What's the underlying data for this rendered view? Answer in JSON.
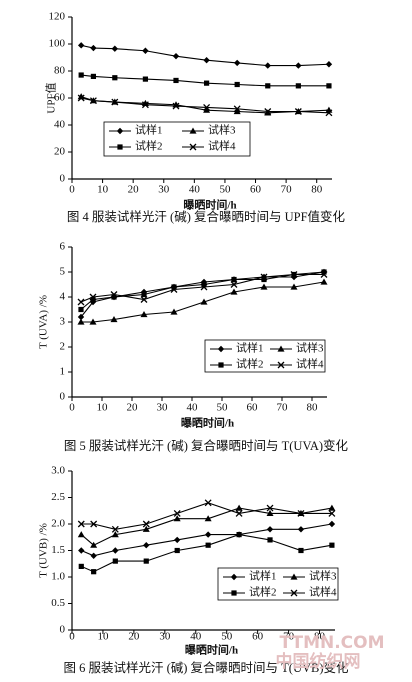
{
  "chart_data": [
    {
      "type": "line",
      "ylabel": "UPF值",
      "xlabel": "曝晒时间/h",
      "caption": "图 4  服装试样光汗 (碱) 复合曝晒时间与 UPF值变化",
      "x": [
        3,
        7,
        14,
        24,
        34,
        44,
        54,
        64,
        74,
        84
      ],
      "xlim": [
        0,
        85
      ],
      "xticks": [
        0,
        10,
        20,
        30,
        40,
        50,
        60,
        70,
        80
      ],
      "ylim": [
        0,
        120
      ],
      "yticks": [
        0,
        20,
        40,
        60,
        80,
        100,
        120
      ],
      "legend": "lower-left",
      "series": [
        {
          "name": "试样1",
          "color": "#000000",
          "marker": "diamond",
          "values": [
            99,
            97,
            96.5,
            95,
            91,
            88,
            86,
            84,
            84,
            85
          ]
        },
        {
          "name": "试样2",
          "color": "#000000",
          "marker": "square",
          "values": [
            77,
            76,
            75,
            74,
            73,
            71,
            70,
            69,
            69,
            69
          ]
        },
        {
          "name": "试样3",
          "color": "#000000",
          "marker": "triangle",
          "values": [
            61,
            58,
            57,
            56,
            55,
            51,
            50,
            49,
            50,
            51
          ]
        },
        {
          "name": "试样4",
          "color": "#000000",
          "marker": "cross",
          "values": [
            60,
            58,
            57,
            55,
            54,
            53,
            52,
            50,
            50,
            49
          ]
        }
      ]
    },
    {
      "type": "line",
      "ylabel": "T (UVA) /%",
      "xlabel": "曝晒时间/h",
      "caption": "图 5  服装试样光汗 (碱) 复合曝晒时间与 T(UVA)变化",
      "x": [
        3,
        7,
        14,
        24,
        34,
        44,
        54,
        64,
        74,
        84
      ],
      "xlim": [
        0,
        85
      ],
      "xticks": [
        0,
        10,
        20,
        30,
        40,
        50,
        60,
        70,
        80
      ],
      "ylim": [
        0,
        6
      ],
      "yticks": [
        0,
        1,
        2,
        3,
        4,
        5,
        6
      ],
      "legend": "lower-right",
      "series": [
        {
          "name": "试样1",
          "color": "#000000",
          "marker": "diamond",
          "values": [
            3.2,
            3.8,
            4.0,
            4.2,
            4.4,
            4.6,
            4.7,
            4.8,
            4.8,
            5.0
          ]
        },
        {
          "name": "试样2",
          "color": "#000000",
          "marker": "square",
          "values": [
            3.5,
            3.9,
            4.0,
            4.1,
            4.4,
            4.5,
            4.7,
            4.7,
            4.9,
            5.0
          ]
        },
        {
          "name": "试样3",
          "color": "#000000",
          "marker": "triangle",
          "values": [
            3.0,
            3.0,
            3.1,
            3.3,
            3.4,
            3.8,
            4.2,
            4.4,
            4.4,
            4.6
          ]
        },
        {
          "name": "试样4",
          "color": "#000000",
          "marker": "cross",
          "values": [
            3.8,
            4.0,
            4.1,
            3.9,
            4.3,
            4.4,
            4.5,
            4.8,
            4.9,
            4.9
          ]
        }
      ]
    },
    {
      "type": "line",
      "ylabel": "T (UVB) /%",
      "xlabel": "曝晒时间/h",
      "caption": "图 6  服装试样光汗 (碱) 复合曝晒时间与 T(UVB)变化",
      "x": [
        3,
        7,
        14,
        24,
        34,
        44,
        54,
        64,
        74,
        84
      ],
      "xlim": [
        0,
        85
      ],
      "xticks": [
        0,
        10,
        20,
        30,
        40,
        50,
        60,
        70,
        80
      ],
      "ylim": [
        0,
        3
      ],
      "yticks": [
        0,
        0.5,
        {
          "value": 1,
          "label": "1.0"
        },
        1.5,
        {
          "value": 2,
          "label": "2.0"
        },
        2.5,
        {
          "value": 3,
          "label": "3.0"
        }
      ],
      "legend": "lower-right",
      "series": [
        {
          "name": "试样1",
          "color": "#000000",
          "marker": "diamond",
          "values": [
            1.5,
            1.4,
            1.5,
            1.6,
            1.7,
            1.8,
            1.8,
            1.9,
            1.9,
            2.0
          ]
        },
        {
          "name": "试样2",
          "color": "#000000",
          "marker": "square",
          "values": [
            1.2,
            1.1,
            1.3,
            1.3,
            1.5,
            1.6,
            1.8,
            1.7,
            1.5,
            1.6
          ]
        },
        {
          "name": "试样3",
          "color": "#000000",
          "marker": "triangle",
          "values": [
            1.8,
            1.6,
            1.8,
            1.9,
            2.1,
            2.1,
            2.3,
            2.2,
            2.2,
            2.3
          ]
        },
        {
          "name": "试样4",
          "color": "#000000",
          "marker": "cross",
          "values": [
            2.0,
            2.0,
            1.9,
            2.0,
            2.2,
            2.4,
            2.2,
            2.3,
            2.2,
            2.2
          ]
        }
      ]
    }
  ],
  "watermark": {
    "site": "TTMN.COM",
    "name": "中国纺织网"
  }
}
